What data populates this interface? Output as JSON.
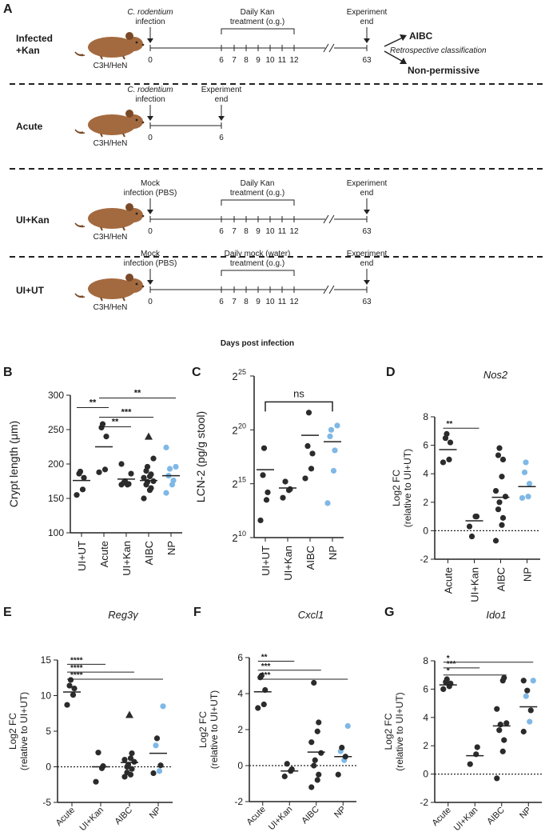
{
  "colors": {
    "dark": "#2b2b2b",
    "blue": "#7fb8e6",
    "mouse": "#a46a3f",
    "mouse_dark": "#7a4a28"
  },
  "panel_a": {
    "letter": "A",
    "mouse_strain": "C3H/HeN",
    "day_ticks": [
      "6",
      "7",
      "8",
      "9",
      "10",
      "11",
      "12"
    ],
    "day_zero": "0",
    "days_label": "Days post infection",
    "rows": [
      {
        "label_lines": [
          "Infected",
          "+Kan"
        ],
        "start_lines": [
          "C. rodentium",
          "infection"
        ],
        "start_italic_first": true,
        "treat_lines": [
          "Daily Kan",
          "treatment (o.g.)"
        ],
        "end_lines": [
          "Experiment",
          "end"
        ],
        "end_day": "63",
        "outcome_1": "AIBC",
        "outcome_note": "Retrospective classification",
        "outcome_2": "Non-permissive"
      },
      {
        "label_lines": [
          "Acute"
        ],
        "start_lines": [
          "C. rodentium",
          "infection"
        ],
        "start_italic_first": true,
        "end_lines": [
          "Experiment",
          "end"
        ],
        "end_day": "6"
      },
      {
        "label_lines": [
          "UI+Kan"
        ],
        "start_lines": [
          "Mock",
          "infection (PBS)"
        ],
        "treat_lines": [
          "Daily Kan",
          "treatment (o.g.)"
        ],
        "end_lines": [
          "Experiment",
          "end"
        ],
        "end_day": "63"
      },
      {
        "label_lines": [
          "UI+UT"
        ],
        "start_lines": [
          "Mock",
          "infection (PBS)"
        ],
        "treat_lines": [
          "Daily mock (water)",
          "treatment (o.g.)"
        ],
        "end_lines": [
          "Experiment",
          "end"
        ],
        "end_day": "63"
      }
    ]
  },
  "chart_data": [
    {
      "panel": "B",
      "type": "scatter",
      "title": "",
      "ylabel": "Crypt length (μm)",
      "categories": [
        "UI+UT",
        "Acute",
        "UI+Kan",
        "AIBC",
        "NP"
      ],
      "ylim": [
        100,
        300
      ],
      "yticks": [
        "100",
        "150",
        "200",
        "250",
        "300"
      ],
      "ytick_values": [
        100,
        150,
        200,
        250,
        300
      ],
      "means": [
        176,
        225,
        178,
        176,
        183
      ],
      "points": [
        [
          155,
          163,
          180,
          186,
          189
        ],
        [
          188,
          192,
          240,
          253,
          258
        ],
        [
          170,
          170,
          171,
          173,
          175,
          186,
          200
        ],
        [
          150,
          162,
          165,
          170,
          174,
          175,
          180,
          182,
          185,
          190,
          196,
          208,
          240
        ],
        [
          158,
          170,
          176,
          183,
          193,
          196,
          224
        ]
      ],
      "point_colors": [
        "dark",
        "dark",
        "dark",
        "dark",
        "blue"
      ],
      "triangles": [
        {
          "cat": 3,
          "value": 240
        }
      ],
      "brackets": [
        {
          "from": 0,
          "to": 1,
          "label": "**",
          "value": 282
        },
        {
          "from": 1,
          "to": 2,
          "label": "**",
          "value": 254
        },
        {
          "from": 1,
          "to": 3,
          "label": "***",
          "value": 268
        },
        {
          "from": 1,
          "to": 4,
          "label": "**",
          "value": 296
        }
      ]
    },
    {
      "panel": "C",
      "type": "scatter",
      "title": "",
      "ylabel": "LCN-2 (pg/g stool)",
      "log2": true,
      "categories": [
        "UI+UT",
        "UI+Kan",
        "AIBC",
        "NP"
      ],
      "ylim": [
        10,
        25
      ],
      "yticks": [
        "10",
        "15",
        "20",
        "25"
      ],
      "ytick_values": [
        10,
        15,
        20,
        25
      ],
      "means": [
        16.3,
        14.6,
        19.5,
        18.9
      ],
      "points": [
        [
          11.6,
          13.5,
          14.2,
          15.8,
          18.3
        ],
        [
          13.7,
          14.4,
          14.5,
          15.2
        ],
        [
          15.5,
          16.4,
          17.8,
          18.5,
          21.6
        ],
        [
          13.2,
          16.2,
          18.1,
          19.4,
          20.0,
          20.4
        ]
      ],
      "point_colors": [
        "dark",
        "dark",
        "dark",
        "blue"
      ],
      "brackets": [
        {
          "from": 0,
          "to": 3,
          "label": "ns",
          "value": 22.6
        }
      ]
    },
    {
      "panel": "D",
      "type": "scatter",
      "title": "Nos2",
      "ylabel_lines": [
        "Log2 FC",
        "(relative to UI+UT)"
      ],
      "categories": [
        "Acute",
        "UI+Kan",
        "AIBC",
        "NP"
      ],
      "ylim": [
        -2,
        8
      ],
      "yticks": [
        "-2",
        "0",
        "2",
        "4",
        "6",
        "8"
      ],
      "ytick_values": [
        -2,
        0,
        2,
        4,
        6,
        8
      ],
      "means": [
        5.7,
        0.7,
        2.35,
        3.1
      ],
      "points": [
        [
          4.8,
          5.0,
          6.2,
          6.5,
          6.8
        ],
        [
          0.3,
          1.0,
          1.0,
          -0.4
        ],
        [
          -0.7,
          0.4,
          0.9,
          1.5,
          2.0,
          2.4,
          2.8,
          3.8,
          5.0,
          5.3,
          5.8
        ],
        [
          2.3,
          2.4,
          3.3,
          4.1,
          4.8
        ]
      ],
      "point_colors": [
        "dark",
        "dark",
        "dark",
        "blue"
      ],
      "brackets": [
        {
          "from": 0,
          "to": 1,
          "label": "**",
          "value": 7.2
        }
      ]
    },
    {
      "panel": "E",
      "type": "scatter",
      "title": "Reg3γ",
      "ylabel_lines": [
        "Log2 FC",
        "(relative to UI+UT)"
      ],
      "categories": [
        "Acute",
        "UI+Kan",
        "AIBC",
        "NP"
      ],
      "ylim": [
        -5,
        15
      ],
      "yticks": [
        "-5",
        "0",
        "5",
        "10",
        "15"
      ],
      "ytick_values": [
        -5,
        0,
        5,
        10,
        15
      ],
      "means": [
        10.5,
        0.0,
        0.6,
        1.9
      ],
      "points": [
        [
          8.7,
          10.1,
          11.0,
          11.4,
          12.2
        ],
        [
          -2.1,
          -0.2,
          0.1,
          2.0
        ],
        [
          -1.4,
          -1.1,
          -0.3,
          0.0,
          0.3,
          0.7,
          1.0,
          1.2,
          1.9,
          -0.8
        ],
        [
          -0.9,
          -0.6,
          0.2,
          3.0,
          4.0,
          8.5
        ]
      ],
      "point_colors": [
        "dark",
        "dark",
        "dark",
        "mixed"
      ],
      "triangles": [
        {
          "cat": 2,
          "value": 7.3
        }
      ],
      "brackets": [
        {
          "from": 0,
          "to": 1,
          "label": "****",
          "value": 14.4
        },
        {
          "from": 0,
          "to": 2,
          "label": "****",
          "value": 13.3
        },
        {
          "from": 0,
          "to": 3,
          "label": "****",
          "value": 12.3
        }
      ]
    },
    {
      "panel": "F",
      "type": "scatter",
      "title": "Cxcl1",
      "ylabel_lines": [
        "Log2 FC",
        "(relative to UI+UT)"
      ],
      "categories": [
        "Acute",
        "UI+Kan",
        "AIBC",
        "NP"
      ],
      "ylim": [
        -2,
        6
      ],
      "yticks": [
        "-2",
        "0",
        "2",
        "4",
        "6"
      ],
      "ytick_values": [
        -2,
        0,
        2,
        4,
        6
      ],
      "means": [
        4.1,
        -0.3,
        0.75,
        0.5
      ],
      "points": [
        [
          3.2,
          3.4,
          4.2,
          4.9,
          5.0
        ],
        [
          -0.6,
          -0.3,
          -0.2,
          0.1
        ],
        [
          -1.2,
          -0.8,
          -0.5,
          0.0,
          0.3,
          0.7,
          1.3,
          1.9,
          2.4,
          4.6
        ],
        [
          -0.5,
          0.3,
          0.5,
          0.8,
          1.0,
          2.2
        ]
      ],
      "point_colors": [
        "dark",
        "dark",
        "dark",
        "mixed"
      ],
      "brackets": [
        {
          "from": 0,
          "to": 1,
          "label": "**",
          "value": 5.8
        },
        {
          "from": 0,
          "to": 2,
          "label": "***",
          "value": 5.3
        },
        {
          "from": 0,
          "to": 3,
          "label": "***",
          "value": 4.8
        }
      ]
    },
    {
      "panel": "G",
      "type": "scatter",
      "title": "Ido1",
      "ylabel_lines": [
        "Log2 FC",
        "(relative to UI+UT)"
      ],
      "categories": [
        "Acute",
        "UI+Kan",
        "AIBC",
        "NP"
      ],
      "ylim": [
        -2,
        8
      ],
      "yticks": [
        "-2",
        "0",
        "2",
        "4",
        "6",
        "8"
      ],
      "ytick_values": [
        -2,
        0,
        2,
        4,
        6,
        8
      ],
      "means": [
        6.3,
        1.3,
        3.4,
        4.75
      ],
      "points": [
        [
          6.0,
          6.2,
          6.4,
          6.5,
          6.7
        ],
        [
          0.7,
          1.4,
          1.9
        ],
        [
          -0.3,
          1.6,
          2.4,
          3.1,
          3.5,
          3.6,
          4.6,
          6.6,
          6.8
        ],
        [
          3.0,
          3.7,
          4.5,
          5.5,
          5.9,
          6.6,
          6.6
        ]
      ],
      "point_colors": [
        "dark",
        "dark",
        "dark",
        "mixed"
      ],
      "brackets": [
        {
          "from": 0,
          "to": 1,
          "label": "***",
          "value": 7.5
        },
        {
          "from": 0,
          "to": 2,
          "label": "*",
          "value": 7.0
        },
        {
          "from": 0,
          "to": 3,
          "label": "*",
          "value": 7.9
        }
      ]
    }
  ]
}
